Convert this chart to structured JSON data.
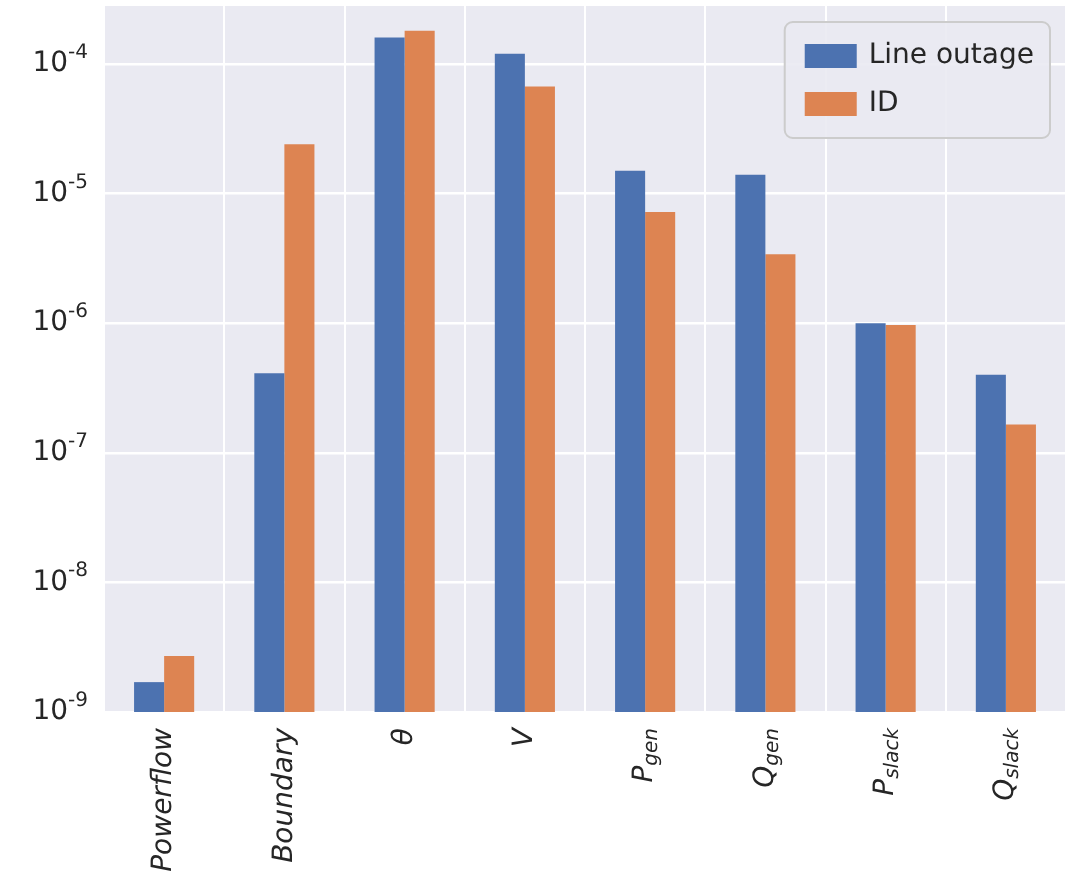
{
  "chart_data": {
    "type": "bar",
    "categories": [
      "Powerflow",
      "Boundary",
      "θ",
      "V",
      "P$_{gen}$",
      "Q$_{gen}$",
      "P$_{slack}$",
      "Q$_{slack}$"
    ],
    "series": [
      {
        "name": "Line outage",
        "color": "#4c72b0",
        "values": [
          1.7e-09,
          4.1e-07,
          0.00016,
          0.00012,
          1.5e-05,
          1.4e-05,
          1e-06,
          4e-07
        ]
      },
      {
        "name": "ID",
        "color": "#dd8452",
        "values": [
          2.7e-09,
          2.4e-05,
          0.00018,
          6.7e-05,
          7.2e-06,
          3.4e-06,
          9.7e-07,
          1.65e-07
        ]
      }
    ],
    "log": "y",
    "ylim": [
      1e-09,
      0.00028
    ],
    "yticks": [
      {
        "value": 1e-09,
        "label": "10$^{-9}$"
      },
      {
        "value": 1e-08,
        "label": "10$^{-8}$"
      },
      {
        "value": 1e-07,
        "label": "10$^{-7}$"
      },
      {
        "value": 1e-06,
        "label": "10$^{-6}$"
      },
      {
        "value": 1e-05,
        "label": "10$^{-5}$"
      },
      {
        "value": 0.0001,
        "label": "10$^{-4}$"
      }
    ],
    "grid": true,
    "legend": "top right"
  }
}
